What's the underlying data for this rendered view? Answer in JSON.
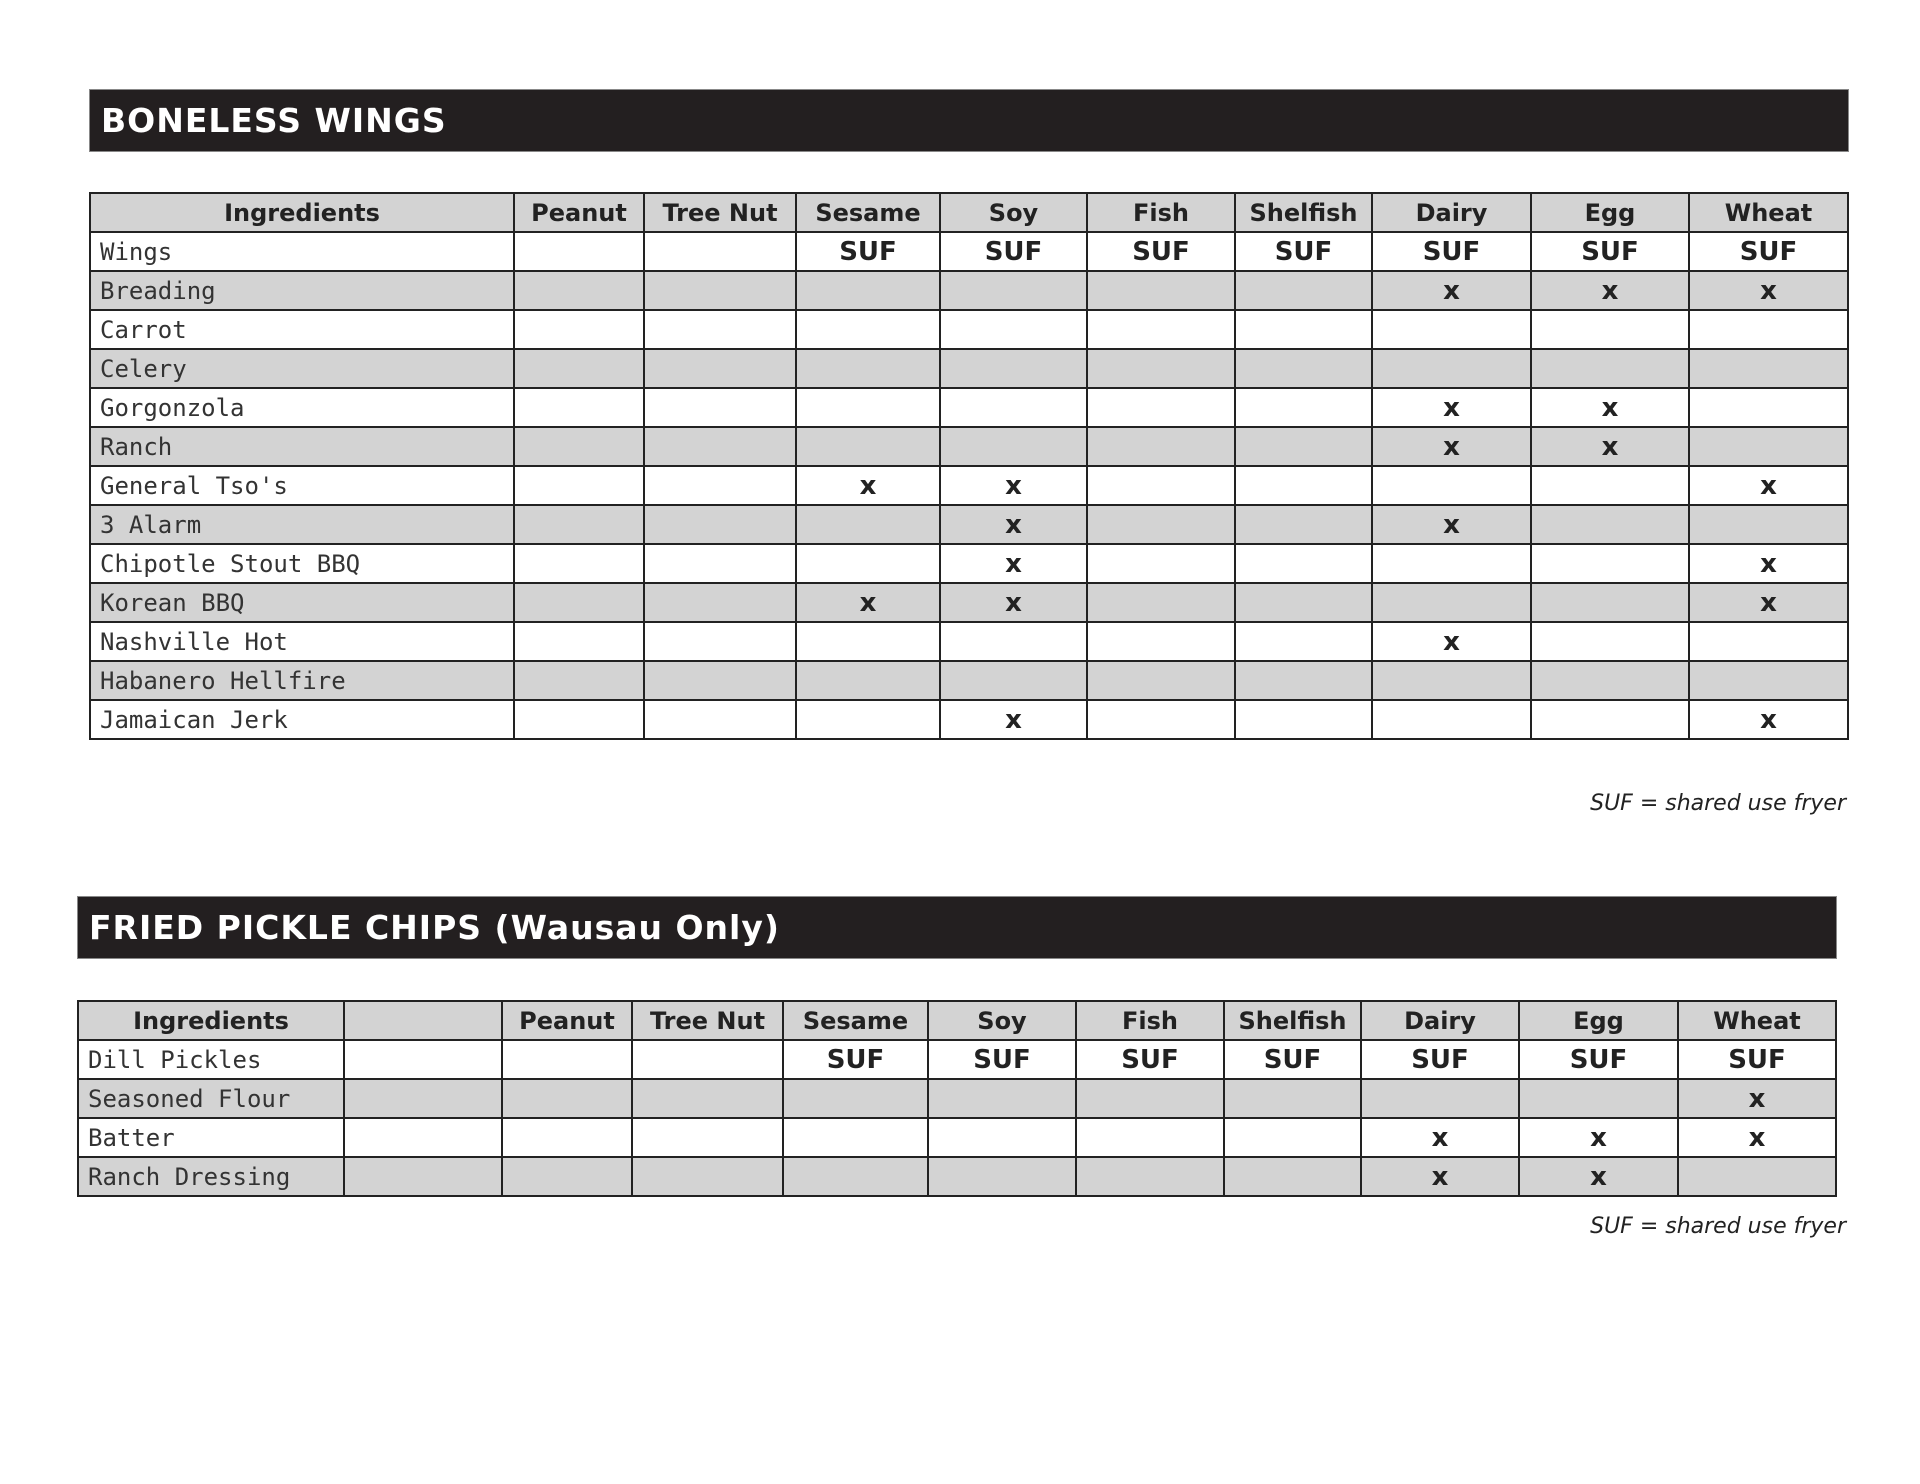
{
  "sections": [
    {
      "title": "BONELESS WINGS",
      "headers": [
        "Ingredients",
        "Peanut",
        "Tree Nut",
        "Sesame",
        "Soy",
        "Fish",
        "Shelfish",
        "Dairy",
        "Egg",
        "Wheat"
      ],
      "rows": [
        [
          "Wings",
          "",
          "",
          "SUF",
          "SUF",
          "SUF",
          "SUF",
          "SUF",
          "SUF",
          "SUF"
        ],
        [
          "Breading",
          "",
          "",
          "",
          "",
          "",
          "",
          "x",
          "x",
          "x"
        ],
        [
          "Carrot",
          "",
          "",
          "",
          "",
          "",
          "",
          "",
          "",
          ""
        ],
        [
          "Celery",
          "",
          "",
          "",
          "",
          "",
          "",
          "",
          "",
          ""
        ],
        [
          "Gorgonzola",
          "",
          "",
          "",
          "",
          "",
          "",
          "x",
          "x",
          ""
        ],
        [
          "Ranch",
          "",
          "",
          "",
          "",
          "",
          "",
          "x",
          "x",
          ""
        ],
        [
          "General Tso's",
          "",
          "",
          "x",
          "x",
          "",
          "",
          "",
          "",
          "x"
        ],
        [
          "3 Alarm",
          "",
          "",
          "",
          "x",
          "",
          "",
          "x",
          "",
          ""
        ],
        [
          "Chipotle Stout BBQ",
          "",
          "",
          "",
          "x",
          "",
          "",
          "",
          "",
          "x"
        ],
        [
          "Korean BBQ",
          "",
          "",
          "x",
          "x",
          "",
          "",
          "",
          "",
          "x"
        ],
        [
          "Nashville Hot",
          "",
          "",
          "",
          "",
          "",
          "",
          "x",
          "",
          ""
        ],
        [
          "Habanero Hellfire",
          "",
          "",
          "",
          "",
          "",
          "",
          "",
          "",
          ""
        ],
        [
          "Jamaican Jerk",
          "",
          "",
          "",
          "x",
          "",
          "",
          "",
          "",
          "x"
        ]
      ],
      "footnote": "SUF = shared use fryer"
    },
    {
      "title": "FRIED PICKLE CHIPS (Wausau Only)",
      "headers": [
        "Ingredients",
        "",
        "Peanut",
        "Tree Nut",
        "Sesame",
        "Soy",
        "Fish",
        "Shelfish",
        "Dairy",
        "Egg",
        "Wheat"
      ],
      "rows": [
        [
          "Dill Pickles",
          "",
          "",
          "",
          "SUF",
          "SUF",
          "SUF",
          "SUF",
          "SUF",
          "SUF",
          "SUF"
        ],
        [
          "Seasoned Flour",
          "",
          "",
          "",
          "",
          "",
          "",
          "",
          "",
          "",
          "x"
        ],
        [
          "Batter",
          "",
          "",
          "",
          "",
          "",
          "",
          "",
          "x",
          "x",
          "x"
        ],
        [
          "Ranch Dressing",
          "",
          "",
          "",
          "",
          "",
          "",
          "",
          "x",
          "x",
          ""
        ]
      ],
      "footnote": "SUF = shared use fryer"
    }
  ]
}
